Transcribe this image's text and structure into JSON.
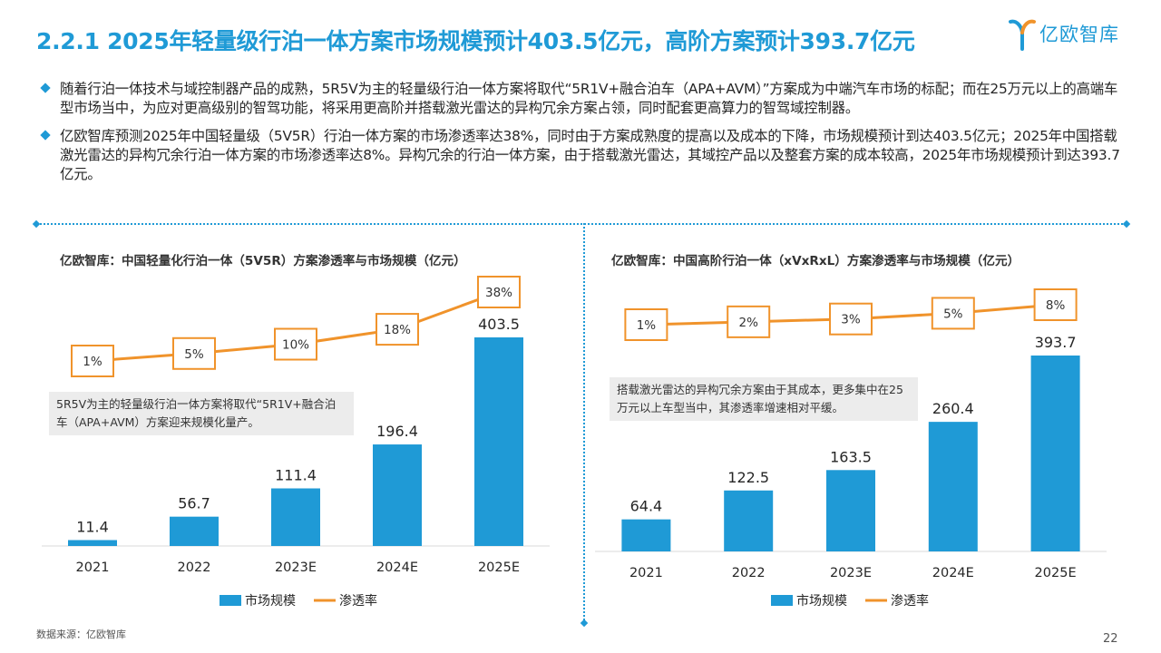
{
  "header": {
    "title": "2.2.1 2025年轻量级行泊一体方案市场规模预计403.5亿元，高阶方案预计393.7亿元",
    "logo_text": "亿欧智库",
    "logo_icon": "yiou-logo-icon"
  },
  "bullets": [
    "随着行泊一体技术与域控制器产品的成熟，5R5V为主的轻量级行泊一体方案将取代“5R1V+融合泊车（APA+AVM）”方案成为中端汽车市场的标配；而在25万元以上的高端车型市场当中，为应对更高级别的智驾功能，将采用更高阶并搭载激光雷达的异构冗余方案占领，同时配套更高算力的智驾域控制器。",
    "亿欧智库预测2025年中国轻量级（5V5R）行泊一体方案的市场渗透率达38%，同时由于方案成熟度的提高以及成本的下降，市场规模预计到达403.5亿元；2025年中国搭载激光雷达的异构冗余行泊一体方案的市场渗透率达8%。异构冗余的行泊一体方案，由于搭载激光雷达，其域控产品以及整套方案的成本较高，2025年市场规模预计到达393.7亿元。"
  ],
  "colors": {
    "accent": "#1f9ad6",
    "line": "#f0932b",
    "note_bg": "#ececec"
  },
  "chart_data": [
    {
      "type": "bar",
      "title": "亿欧智库：中国轻量化行泊一体（5V5R）方案渗透率与市场规模（亿元）",
      "categories": [
        "2021",
        "2022",
        "2023E",
        "2024E",
        "2025E"
      ],
      "series": [
        {
          "name": "市场规模",
          "type": "bar",
          "values": [
            11.4,
            56.7,
            111.4,
            196.4,
            403.5
          ]
        },
        {
          "name": "渗透率",
          "type": "line",
          "values": [
            1,
            5,
            10,
            18,
            38
          ],
          "labels": [
            "1%",
            "5%",
            "10%",
            "18%",
            "38%"
          ]
        }
      ],
      "annotation": "5R5V为主的轻量级行泊一体方案将取代“5R1V+融合泊车（APA+AVM）方案迎来规模化量产。",
      "legend": "bottom"
    },
    {
      "type": "bar",
      "title": "亿欧智库：中国高阶行泊一体（xVxRxL）方案渗透率与市场规模（亿元）",
      "categories": [
        "2021",
        "2022",
        "2023E",
        "2024E",
        "2025E"
      ],
      "series": [
        {
          "name": "市场规模",
          "type": "bar",
          "values": [
            64.4,
            122.5,
            163.5,
            260.4,
            393.7
          ]
        },
        {
          "name": "渗透率",
          "type": "line",
          "values": [
            1,
            2,
            3,
            5,
            8
          ],
          "labels": [
            "1%",
            "2%",
            "3%",
            "5%",
            "8%"
          ]
        }
      ],
      "annotation": "搭载激光雷达的异构冗余方案由于其成本，更多集中在25万元以上车型当中，其渗透率增速相对平缓。",
      "legend": "bottom"
    }
  ],
  "footer": {
    "source": "数据来源：亿欧智库",
    "page": "22"
  }
}
